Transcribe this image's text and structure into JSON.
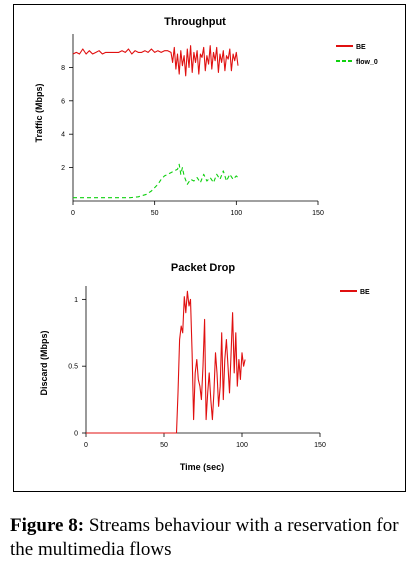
{
  "caption": {
    "label": "Figure 8:",
    "text": " Streams behaviour with a reservation for the multimedia flows"
  },
  "chart_data": [
    {
      "type": "line",
      "title": "Throughput",
      "xlabel": "",
      "ylabel": "Traffic (Mbps)",
      "xlim": [
        0,
        150
      ],
      "ylim": [
        0,
        10
      ],
      "xticks": [
        0,
        50,
        100,
        150
      ],
      "xtick_labels": [
        "0",
        "50",
        "100",
        "150"
      ],
      "yticks": [
        2,
        4,
        6,
        8
      ],
      "ytick_labels": [
        "2",
        "4",
        "6",
        "8"
      ],
      "grid": false,
      "legend": "top-right",
      "series": [
        {
          "name": "BE",
          "color": "#e01010",
          "style": "solid",
          "x": [
            0,
            2,
            4,
            6,
            8,
            10,
            12,
            14,
            16,
            18,
            20,
            22,
            24,
            26,
            28,
            30,
            32,
            34,
            36,
            38,
            40,
            42,
            44,
            46,
            48,
            50,
            52,
            54,
            56,
            58,
            60,
            61,
            62,
            63,
            64,
            65,
            66,
            67,
            68,
            69,
            70,
            71,
            72,
            73,
            74,
            75,
            76,
            77,
            78,
            79,
            80,
            81,
            82,
            83,
            84,
            85,
            86,
            87,
            88,
            89,
            90,
            91,
            92,
            93,
            94,
            95,
            96,
            97,
            98,
            99,
            100,
            101
          ],
          "values": [
            8.8,
            8.9,
            8.8,
            9.1,
            8.8,
            9.0,
            8.8,
            8.9,
            9.0,
            8.8,
            8.9,
            8.9,
            8.9,
            8.9,
            8.9,
            9.0,
            8.9,
            9.1,
            8.8,
            9.0,
            8.9,
            8.9,
            9.0,
            8.9,
            9.1,
            8.9,
            9.0,
            8.9,
            9.0,
            9.0,
            8.9,
            8.3,
            9.2,
            7.9,
            8.8,
            7.6,
            9.0,
            8.1,
            8.7,
            7.5,
            9.1,
            8.0,
            9.3,
            7.7,
            8.9,
            8.3,
            9.0,
            7.6,
            8.8,
            8.6,
            9.2,
            7.8,
            8.7,
            8.2,
            9.3,
            7.9,
            8.9,
            8.4,
            9.2,
            7.7,
            8.8,
            8.3,
            9.0,
            7.8,
            8.7,
            8.5,
            9.1,
            7.8,
            8.8,
            8.4,
            8.9,
            8.1
          ]
        },
        {
          "name": "flow_0",
          "color": "#10d010",
          "style": "dashed",
          "x": [
            0,
            5,
            10,
            15,
            20,
            25,
            30,
            35,
            40,
            45,
            48,
            50,
            52,
            54,
            56,
            58,
            60,
            62,
            64,
            65,
            66,
            67,
            68,
            70,
            72,
            74,
            76,
            78,
            80,
            82,
            84,
            86,
            88,
            90,
            92,
            94,
            96,
            98,
            100,
            101
          ],
          "values": [
            0.2,
            0.2,
            0.2,
            0.2,
            0.2,
            0.2,
            0.2,
            0.2,
            0.25,
            0.4,
            0.6,
            0.8,
            1.0,
            1.3,
            1.5,
            1.6,
            1.7,
            1.8,
            1.9,
            2.2,
            1.6,
            2.0,
            1.5,
            1.0,
            1.3,
            1.2,
            1.4,
            1.1,
            1.6,
            1.2,
            1.4,
            1.1,
            1.6,
            1.3,
            1.8,
            1.2,
            1.6,
            1.3,
            1.5,
            1.4
          ]
        }
      ]
    },
    {
      "type": "line",
      "title": "Packet Drop",
      "xlabel": "Time (sec)",
      "ylabel": "Discard (Mbps)",
      "xlim": [
        0,
        150
      ],
      "ylim": [
        0,
        1.1
      ],
      "xticks": [
        0,
        50,
        100,
        150
      ],
      "xtick_labels": [
        "0",
        "50",
        "100",
        "150"
      ],
      "yticks": [
        0,
        0.5,
        1
      ],
      "ytick_labels": [
        "0",
        "0.5",
        "1"
      ],
      "grid": false,
      "legend": "top-right",
      "series": [
        {
          "name": "BE",
          "color": "#e01010",
          "style": "solid",
          "x": [
            0,
            10,
            20,
            30,
            40,
            50,
            55,
            58,
            59,
            60,
            61,
            62,
            63,
            64,
            65,
            66,
            67,
            68,
            69,
            70,
            71,
            72,
            73,
            74,
            75,
            76,
            77,
            78,
            79,
            80,
            81,
            82,
            83,
            84,
            85,
            86,
            87,
            88,
            89,
            90,
            91,
            92,
            93,
            94,
            95,
            96,
            97,
            98,
            99,
            100,
            101,
            102
          ],
          "values": [
            0,
            0,
            0,
            0,
            0,
            0,
            0,
            0,
            0.3,
            0.7,
            0.8,
            0.75,
            1.02,
            0.9,
            1.06,
            0.95,
            1.0,
            0.6,
            0.1,
            0.45,
            0.55,
            0.4,
            0.35,
            0.25,
            0.5,
            0.85,
            0.1,
            0.3,
            0.45,
            0.25,
            0.1,
            0.3,
            0.6,
            0.45,
            0.2,
            0.35,
            0.75,
            0.25,
            0.55,
            0.7,
            0.5,
            0.3,
            0.6,
            0.9,
            0.45,
            0.75,
            0.35,
            0.55,
            0.4,
            0.6,
            0.5,
            0.55
          ]
        }
      ]
    }
  ]
}
